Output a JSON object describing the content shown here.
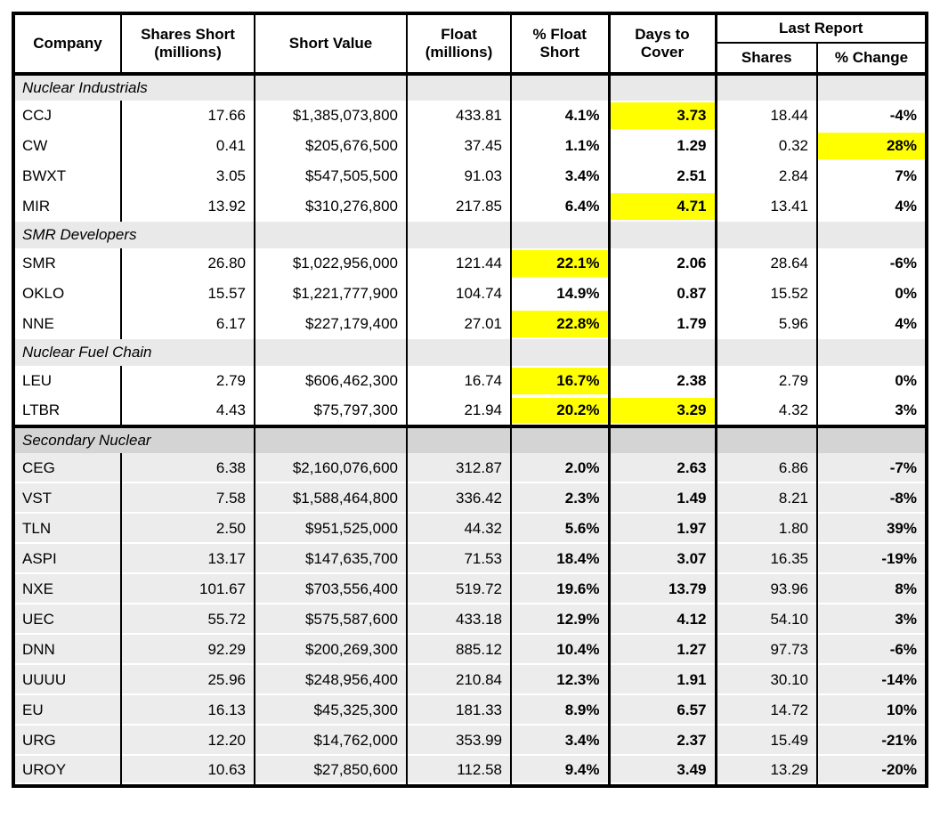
{
  "header": {
    "company": "Company",
    "shares_short_1": "Shares Short",
    "shares_short_2": "(millions)",
    "short_value": "Short Value",
    "float_1": "Float",
    "float_2": "(millions)",
    "pct_float_1": "% Float",
    "pct_float_2": "Short",
    "days_1": "Days to",
    "days_2": "Cover",
    "last_report": "Last Report",
    "last_shares": "Shares",
    "pct_change": "% Change"
  },
  "colors": {
    "highlight_yellow": "#ffff00",
    "highlight_green": "#c8e4cf",
    "section_header_bg": "#e9e9e9",
    "secondary_section_header_bg": "#d4d4d4",
    "secondary_row_bg": "#ececec",
    "border": "#000000"
  },
  "sections": [
    {
      "label": "Nuclear Industrials",
      "secondary": false,
      "thick_top": false,
      "rows": [
        {
          "company": "CCJ",
          "shares_short": "17.66",
          "short_value": "$1,385,073,800",
          "float": "433.81",
          "pct_float": "4.1%",
          "days_to_cover": "3.73",
          "last_shares": "18.44",
          "pct_change": "-4%",
          "highlights": {
            "days_to_cover": "yellow"
          }
        },
        {
          "company": "CW",
          "shares_short": "0.41",
          "short_value": "$205,676,500",
          "float": "37.45",
          "pct_float": "1.1%",
          "days_to_cover": "1.29",
          "last_shares": "0.32",
          "pct_change": "28%",
          "highlights": {
            "pct_change": "yellow"
          }
        },
        {
          "company": "BWXT",
          "shares_short": "3.05",
          "short_value": "$547,505,500",
          "float": "91.03",
          "pct_float": "3.4%",
          "days_to_cover": "2.51",
          "last_shares": "2.84",
          "pct_change": "7%",
          "highlights": {}
        },
        {
          "company": "MIR",
          "shares_short": "13.92",
          "short_value": "$310,276,800",
          "float": "217.85",
          "pct_float": "6.4%",
          "days_to_cover": "4.71",
          "last_shares": "13.41",
          "pct_change": "4%",
          "highlights": {
            "days_to_cover": "yellow"
          }
        }
      ]
    },
    {
      "label": "SMR Developers",
      "secondary": false,
      "thick_top": false,
      "rows": [
        {
          "company": "SMR",
          "shares_short": "26.80",
          "short_value": "$1,022,956,000",
          "float": "121.44",
          "pct_float": "22.1%",
          "days_to_cover": "2.06",
          "last_shares": "28.64",
          "pct_change": "-6%",
          "highlights": {
            "pct_float": "yellow"
          }
        },
        {
          "company": "OKLO",
          "shares_short": "15.57",
          "short_value": "$1,221,777,900",
          "float": "104.74",
          "pct_float": "14.9%",
          "days_to_cover": "0.87",
          "last_shares": "15.52",
          "pct_change": "0%",
          "highlights": {}
        },
        {
          "company": "NNE",
          "shares_short": "6.17",
          "short_value": "$227,179,400",
          "float": "27.01",
          "pct_float": "22.8%",
          "days_to_cover": "1.79",
          "last_shares": "5.96",
          "pct_change": "4%",
          "highlights": {
            "pct_float": "yellow"
          }
        }
      ]
    },
    {
      "label": "Nuclear Fuel Chain",
      "secondary": false,
      "thick_top": false,
      "rows": [
        {
          "company": "LEU",
          "shares_short": "2.79",
          "short_value": "$606,462,300",
          "float": "16.74",
          "pct_float": "16.7%",
          "days_to_cover": "2.38",
          "last_shares": "2.79",
          "pct_change": "0%",
          "highlights": {
            "pct_float": "yellow"
          }
        },
        {
          "company": "LTBR",
          "shares_short": "4.43",
          "short_value": "$75,797,300",
          "float": "21.94",
          "pct_float": "20.2%",
          "days_to_cover": "3.29",
          "last_shares": "4.32",
          "pct_change": "3%",
          "highlights": {
            "pct_float": "yellow",
            "days_to_cover": "yellow"
          }
        }
      ]
    },
    {
      "label": "Secondary Nuclear",
      "secondary": true,
      "thick_top": true,
      "rows": [
        {
          "company": "CEG",
          "shares_short": "6.38",
          "short_value": "$2,160,076,600",
          "float": "312.87",
          "pct_float": "2.0%",
          "days_to_cover": "2.63",
          "last_shares": "6.86",
          "pct_change": "-7%",
          "highlights": {}
        },
        {
          "company": "VST",
          "shares_short": "7.58",
          "short_value": "$1,588,464,800",
          "float": "336.42",
          "pct_float": "2.3%",
          "days_to_cover": "1.49",
          "last_shares": "8.21",
          "pct_change": "-8%",
          "highlights": {}
        },
        {
          "company": "TLN",
          "shares_short": "2.50",
          "short_value": "$951,525,000",
          "float": "44.32",
          "pct_float": "5.6%",
          "days_to_cover": "1.97",
          "last_shares": "1.80",
          "pct_change": "39%",
          "highlights": {
            "pct_change": "yellow"
          }
        },
        {
          "company": "ASPI",
          "shares_short": "13.17",
          "short_value": "$147,635,700",
          "float": "71.53",
          "pct_float": "18.4%",
          "days_to_cover": "3.07",
          "last_shares": "16.35",
          "pct_change": "-19%",
          "highlights": {
            "pct_float": "yellow",
            "days_to_cover": "yellow",
            "pct_change": "green"
          }
        },
        {
          "company": "NXE",
          "shares_short": "101.67",
          "short_value": "$703,556,400",
          "float": "519.72",
          "pct_float": "19.6%",
          "days_to_cover": "13.79",
          "last_shares": "93.96",
          "pct_change": "8%",
          "highlights": {
            "pct_float": "yellow",
            "days_to_cover": "yellow"
          }
        },
        {
          "company": "UEC",
          "shares_short": "55.72",
          "short_value": "$575,587,600",
          "float": "433.18",
          "pct_float": "12.9%",
          "days_to_cover": "4.12",
          "last_shares": "54.10",
          "pct_change": "3%",
          "highlights": {
            "days_to_cover": "yellow"
          }
        },
        {
          "company": "DNN",
          "shares_short": "92.29",
          "short_value": "$200,269,300",
          "float": "885.12",
          "pct_float": "10.4%",
          "days_to_cover": "1.27",
          "last_shares": "97.73",
          "pct_change": "-6%",
          "highlights": {}
        },
        {
          "company": "UUUU",
          "shares_short": "25.96",
          "short_value": "$248,956,400",
          "float": "210.84",
          "pct_float": "12.3%",
          "days_to_cover": "1.91",
          "last_shares": "30.10",
          "pct_change": "-14%",
          "highlights": {
            "pct_change": "green"
          }
        },
        {
          "company": "EU",
          "shares_short": "16.13",
          "short_value": "$45,325,300",
          "float": "181.33",
          "pct_float": "8.9%",
          "days_to_cover": "6.57",
          "last_shares": "14.72",
          "pct_change": "10%",
          "highlights": {
            "days_to_cover": "yellow"
          }
        },
        {
          "company": "URG",
          "shares_short": "12.20",
          "short_value": "$14,762,000",
          "float": "353.99",
          "pct_float": "3.4%",
          "days_to_cover": "2.37",
          "last_shares": "15.49",
          "pct_change": "-21%",
          "highlights": {
            "pct_change": "green"
          }
        },
        {
          "company": "UROY",
          "shares_short": "10.63",
          "short_value": "$27,850,600",
          "float": "112.58",
          "pct_float": "9.4%",
          "days_to_cover": "3.49",
          "last_shares": "13.29",
          "pct_change": "-20%",
          "highlights": {
            "days_to_cover": "yellow",
            "pct_change": "green"
          }
        }
      ]
    }
  ]
}
